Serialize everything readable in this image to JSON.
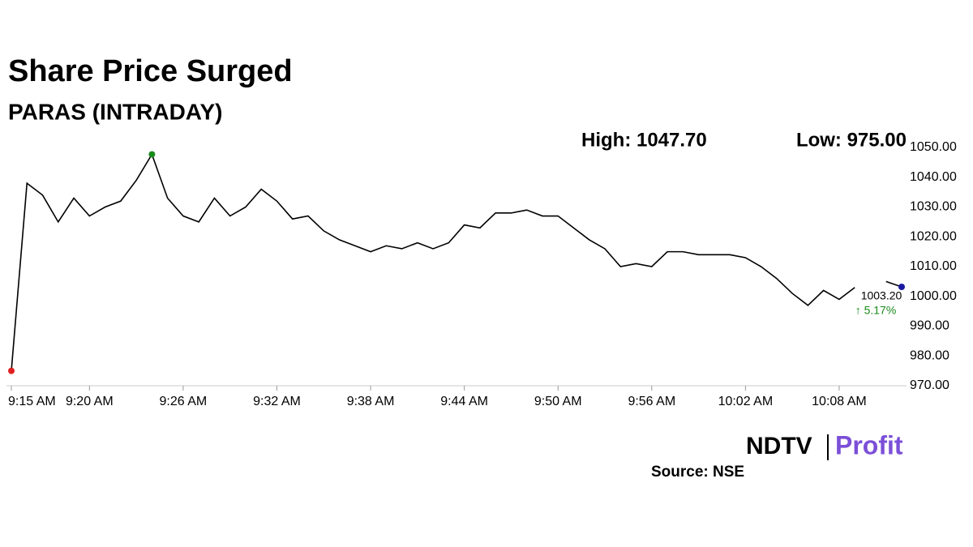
{
  "chart_data": {
    "type": "line",
    "title": "Share Price Surged",
    "subtitle": "PARAS (INTRADAY)",
    "annotations": {
      "high": "High: 1047.70",
      "low": "Low: 975.00",
      "last": "1003.20",
      "change": "↑ 5.17%"
    },
    "brand": {
      "left": "NDTV",
      "right": "Profit"
    },
    "source": "Source: NSE",
    "x": [
      "9:15 AM",
      "9:16 AM",
      "9:17 AM",
      "9:18 AM",
      "9:19 AM",
      "9:20 AM",
      "9:21 AM",
      "9:22 AM",
      "9:23 AM",
      "9:24 AM",
      "9:25 AM",
      "9:26 AM",
      "9:27 AM",
      "9:28 AM",
      "9:29 AM",
      "9:30 AM",
      "9:31 AM",
      "9:32 AM",
      "9:33 AM",
      "9:34 AM",
      "9:35 AM",
      "9:36 AM",
      "9:37 AM",
      "9:38 AM",
      "9:39 AM",
      "9:40 AM",
      "9:41 AM",
      "9:42 AM",
      "9:43 AM",
      "9:44 AM",
      "9:45 AM",
      "9:46 AM",
      "9:47 AM",
      "9:48 AM",
      "9:49 AM",
      "9:50 AM",
      "9:51 AM",
      "9:52 AM",
      "9:53 AM",
      "9:54 AM",
      "9:55 AM",
      "9:56 AM",
      "9:57 AM",
      "9:58 AM",
      "9:59 AM",
      "10:00 AM",
      "10:01 AM",
      "10:02 AM",
      "10:03 AM",
      "10:04 AM",
      "10:05 AM",
      "10:06 AM",
      "10:07 AM",
      "10:08 AM",
      "10:09 AM",
      "10:10 AM",
      "10:11 AM",
      "10:12 AM"
    ],
    "series": [
      {
        "name": "PARAS",
        "color": "#000000",
        "values": [
          975,
          1038,
          1034,
          1025,
          1033,
          1027,
          1030,
          1032,
          1039,
          1047.7,
          1033,
          1027,
          1025,
          1033,
          1027,
          1030,
          1036,
          1032,
          1026,
          1027,
          1022,
          1019,
          1017,
          1015,
          1017,
          1016,
          1018,
          1016,
          1018,
          1024,
          1023,
          1028,
          1028,
          1029,
          1027,
          1027,
          1023,
          1019,
          1016,
          1010,
          1011,
          1010,
          1015,
          1015,
          1014,
          1014,
          1014,
          1013,
          1010,
          1006,
          1001,
          997,
          1002,
          999,
          1003,
          null,
          1005,
          1003.2
        ]
      }
    ],
    "xticks": [
      "9:15 AM",
      "9:20 AM",
      "9:26 AM",
      "9:32 AM",
      "9:38 AM",
      "9:44 AM",
      "9:50 AM",
      "9:56 AM",
      "10:02 AM",
      "10:08 AM"
    ],
    "ylim": [
      970,
      1050
    ],
    "yticks": [
      {
        "value": 970,
        "label": "970.00"
      },
      {
        "value": 980,
        "label": "980.00"
      },
      {
        "value": 990,
        "label": "990.00"
      },
      {
        "value": 1000,
        "label": "1000.00"
      },
      {
        "value": 1010,
        "label": "1010.00"
      },
      {
        "value": 1020,
        "label": "1020.00"
      },
      {
        "value": 1030,
        "label": "1030.00"
      },
      {
        "value": 1040,
        "label": "1040.00"
      },
      {
        "value": 1050,
        "label": "1050.00"
      }
    ],
    "grid": false,
    "marker_colors": {
      "high": "#1a8a1a",
      "low": "#e02020",
      "last": "#1a1aa0"
    }
  }
}
